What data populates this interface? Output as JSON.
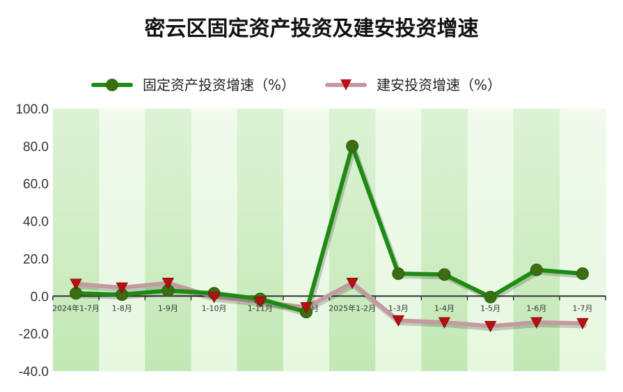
{
  "title": "密云区固定资产投资及建安投资增速",
  "colors": {
    "series1": "#1e8a14",
    "series1_marker": "#3a6e10",
    "series2": "#c49aa0",
    "series2_marker": "#b80f0f",
    "band_dark": "#c2e8b4",
    "band_light": "#e6f7df"
  },
  "chart_data": {
    "type": "line",
    "categories": [
      "2024年1-7月",
      "1-8月",
      "1-9月",
      "1-10月",
      "1-11月",
      "1-12月",
      "2025年1-2月",
      "1-3月",
      "1-4月",
      "1-5月",
      "1-6月",
      "1-7月"
    ],
    "series": [
      {
        "name": "固定资产投资增速（%）",
        "marker": "circle",
        "values": [
          1.5,
          0.8,
          3.0,
          1.5,
          -1.5,
          -8.5,
          80.0,
          12.0,
          11.5,
          -0.5,
          14.0,
          12.0
        ]
      },
      {
        "name": "建安投资增速（%）",
        "marker": "triangle-down",
        "values": [
          6.5,
          4.5,
          7.0,
          -0.5,
          -3.0,
          -6.0,
          7.0,
          -13.0,
          -14.0,
          -16.0,
          -14.0,
          -14.5
        ]
      }
    ],
    "ylim": [
      -40,
      100
    ],
    "yticks": [
      "100.0",
      "80.0",
      "60.0",
      "40.0",
      "20.0",
      "0.0",
      "-20.0",
      "-40.0"
    ],
    "legend_position": "top-center",
    "grid": false
  }
}
